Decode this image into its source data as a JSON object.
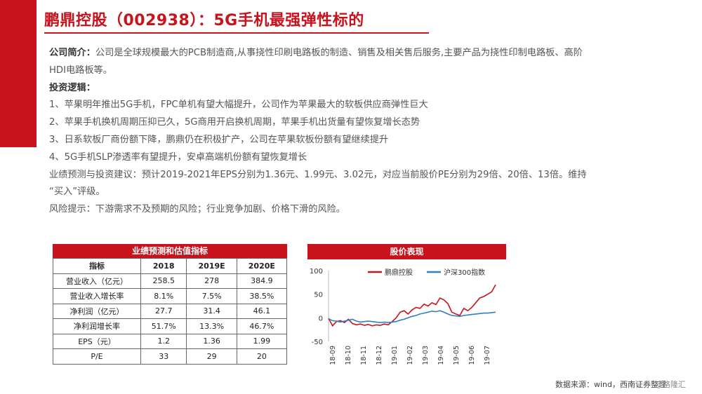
{
  "page": {
    "title": "鹏鼎控股（002938）：5G手机最强弹性标的"
  },
  "intro": {
    "label": "公司简介：",
    "text1": "公司是全球规模最大的PCB制造商,从事挠性印刷电路板的制造、销售及相关售后服务,主要产品为挠性印制电路板、高阶",
    "text2": "HDI电路板等。"
  },
  "logic": {
    "heading": "投资逻辑：",
    "points": [
      "1、苹果明年推出5G手机，FPC单机有望大幅提升，公司作为苹果最大的软板供应商弹性巨大",
      "2、苹果手机换机周期压抑已久，5G商用开启换机周期，苹果手机出货量有望恢复增长态势",
      "3、日系软板厂商份额下降，鹏鼎仍在积极扩产，公司在苹果软板份额有望继续提升",
      "4、5G手机SLP渗透率有望提升，安卓高端机份额有望恢复增长"
    ]
  },
  "forecast": {
    "line1": "业绩预测与投资建议：预计2019-2021年EPS分别为1.36元、1.99元、3.02元，对应当前股价PE分别为29倍、20倍、13倍。维持",
    "line2": "“买入”评级。"
  },
  "risk": {
    "text": "风险提示：下游需求不及预期的风险；行业竞争加剧、价格下滑的风险。"
  },
  "table": {
    "title": "业绩预测和估值指标",
    "headers": [
      "指标",
      "2018",
      "2019E",
      "2020E"
    ],
    "rows": [
      [
        "营业收入（亿元）",
        "258.5",
        "278",
        "384.9"
      ],
      [
        "营业收入增长率",
        "8.1%",
        "7.5%",
        "38.5%"
      ],
      [
        "净利润（亿元）",
        "27.7",
        "31.4",
        "46.1"
      ],
      [
        "净利润增长率",
        "51.7%",
        "13.3%",
        "46.7%"
      ],
      [
        "EPS（元）",
        "1.2",
        "1.36",
        "1.99"
      ],
      [
        "P/E",
        "33",
        "29",
        "20"
      ]
    ]
  },
  "chart_header": "股价表现",
  "chart_data": {
    "type": "line",
    "title": "股价表现",
    "ylim": [
      -50,
      100
    ],
    "yticks": [
      100,
      50,
      0,
      -50
    ],
    "xticks": [
      "18-09",
      "18-10",
      "18-11",
      "18-12",
      "19-01",
      "19-02",
      "19-03",
      "19-04",
      "19-05",
      "19-06",
      "19-07"
    ],
    "legend_position": "top",
    "series": [
      {
        "name": "鹏鼎控股",
        "color": "#c8121c",
        "values": [
          -1,
          -17,
          -8,
          -6,
          -10,
          -3,
          -12,
          -15,
          -13,
          -16,
          -14,
          -17,
          -15,
          -16,
          -13,
          -15,
          -8,
          0,
          12,
          15,
          8,
          17,
          22,
          20,
          29,
          25,
          32,
          28,
          42,
          38,
          30,
          12,
          8,
          5,
          20,
          15,
          22,
          32,
          42,
          45,
          50,
          55,
          70
        ]
      },
      {
        "name": "沪深300指数",
        "color": "#2e7fc1",
        "values": [
          -2,
          -6,
          -7,
          -9,
          -7,
          -5,
          -3,
          -7,
          -9,
          -8,
          -7,
          -8,
          -9,
          -10,
          -9,
          -10,
          -9,
          -8,
          -5,
          -3,
          0,
          3,
          5,
          8,
          10,
          12,
          14,
          13,
          15,
          12,
          8,
          5,
          4,
          3,
          5,
          6,
          7,
          8,
          9,
          10,
          10,
          11,
          12
        ]
      }
    ]
  },
  "footer": {
    "source": "数据来源：wind，西南证券整理",
    "watermark": "@格隆汇"
  },
  "colors": {
    "accent": "#c8121c",
    "blue": "#2e7fc1"
  }
}
